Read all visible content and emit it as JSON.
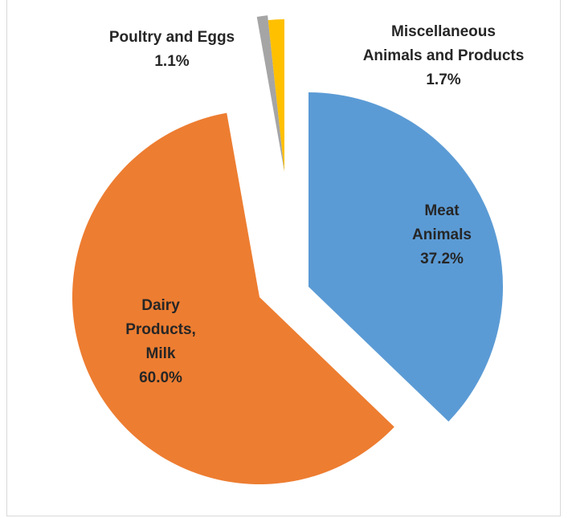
{
  "chart_data": {
    "type": "pie",
    "title": "",
    "slices": [
      {
        "name": "Meat Animals",
        "label_lines": [
          "Meat",
          "Animals"
        ],
        "value": 37.2,
        "value_label": "37.2%",
        "color": "#5B9BD5"
      },
      {
        "name": "Dairy Products, Milk",
        "label_lines": [
          "Dairy",
          "Products,",
          "Milk"
        ],
        "value": 60.0,
        "value_label": "60.0%",
        "color": "#ED7D31"
      },
      {
        "name": "Poultry and Eggs",
        "label_lines": [
          "Poultry and Eggs"
        ],
        "value": 1.1,
        "value_label": "1.1%",
        "color": "#A5A5A5"
      },
      {
        "name": "Miscellaneous Animals and Products",
        "label_lines": [
          "Miscellaneous",
          "Animals and Products"
        ],
        "value": 1.7,
        "value_label": "1.7%",
        "color": "#FFC000"
      }
    ],
    "exploded": true,
    "legend": "none",
    "data_labels": "category name and percentage"
  }
}
